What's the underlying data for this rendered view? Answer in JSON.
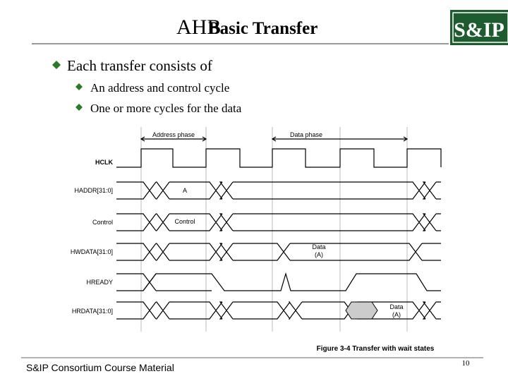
{
  "header": {
    "title_prefix": "AHB",
    "title": "Basic Transfer",
    "logo": "S&IP"
  },
  "bullets": {
    "main": "Each transfer consists of",
    "sub": [
      "An address and control cycle",
      "One or more cycles for the data"
    ]
  },
  "diagram": {
    "phases": [
      "Address phase",
      "Data phase"
    ],
    "signals": [
      "HCLK",
      "HADDR[31:0]",
      "Control",
      "HWDATA[31:0]",
      "HREADY",
      "HRDATA[31:0]"
    ],
    "annotations": [
      "A",
      "Control",
      "Data",
      "(A)",
      "Data",
      "(A)"
    ],
    "caption": "Figure 3-4 Transfer with wait states"
  },
  "footer": {
    "text": "S&IP Consortium Course Material",
    "page": "10"
  }
}
